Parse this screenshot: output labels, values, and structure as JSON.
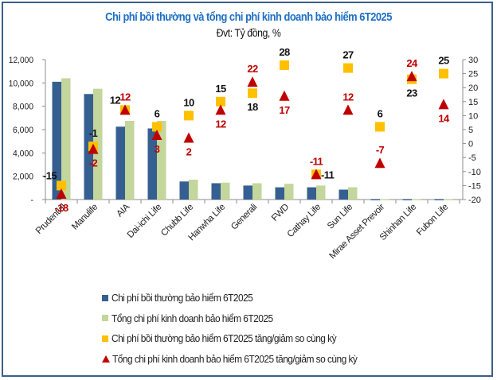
{
  "chart_data": {
    "type": "bar",
    "title": "Chi phí bồi thường và tổng chi phí kinh doanh bảo hiểm 6T2025",
    "subtitle": "Đvt: Tỷ đồng, %",
    "categories": [
      "Prudential",
      "Manulife",
      "AIA",
      "Dai-ichi Life",
      "Chubb Life",
      "Hanwha Life",
      "Generali",
      "FWD",
      "Cathay Life",
      "Sun Life",
      "Mirae Asset Prevoir",
      "Shinhan Life",
      "Fubon Life"
    ],
    "series": [
      {
        "name": "Chi phí bồi thường bảo hiểm 6T2025",
        "type": "bar",
        "axis": "left",
        "color": "#355f91",
        "values": [
          10100,
          9050,
          6250,
          6100,
          1550,
          1400,
          1200,
          1050,
          1050,
          850,
          40,
          40,
          40
        ]
      },
      {
        "name": "Tổng chi phí kinh doanh bảo hiểm 6T2025",
        "type": "bar",
        "axis": "left",
        "color": "#c3d69b",
        "values": [
          10400,
          9500,
          6750,
          6750,
          1700,
          1450,
          1400,
          1350,
          1200,
          1050,
          40,
          40,
          40
        ]
      },
      {
        "name": "Chi phí bồi thường bảo hiểm 6T2025 tăng/giảm so cùng kỳ",
        "type": "scatter",
        "marker": "square",
        "axis": "right",
        "color": "#ffc000",
        "label_color": "#111111",
        "values": [
          -15,
          -1,
          12,
          6,
          10,
          15,
          18,
          28,
          -11,
          27,
          6,
          23,
          25
        ]
      },
      {
        "name": "Tổng chi phí kinh doanh bảo hiểm 6T2025 tăng/giảm so cùng kỳ",
        "type": "scatter",
        "marker": "triangle",
        "axis": "right",
        "color": "#c00000",
        "label_color": "#c00000",
        "values": [
          -18,
          -2,
          12,
          3,
          2,
          12,
          22,
          17,
          -11,
          12,
          -7,
          24,
          14
        ]
      }
    ],
    "left_axis": {
      "min": 0,
      "max": 12000,
      "step": 2000,
      "tick_labels": [
        "-",
        "2,000",
        "4,000",
        "6,000",
        "8,000",
        "10,000",
        "12,000"
      ]
    },
    "right_axis": {
      "min": -20,
      "max": 30,
      "step": 5,
      "tick_labels": [
        "-20",
        "-15",
        "-10",
        "-5",
        "0",
        "5",
        "10",
        "15",
        "20",
        "25",
        "30"
      ]
    },
    "legend_position": "bottom",
    "grid": false
  }
}
